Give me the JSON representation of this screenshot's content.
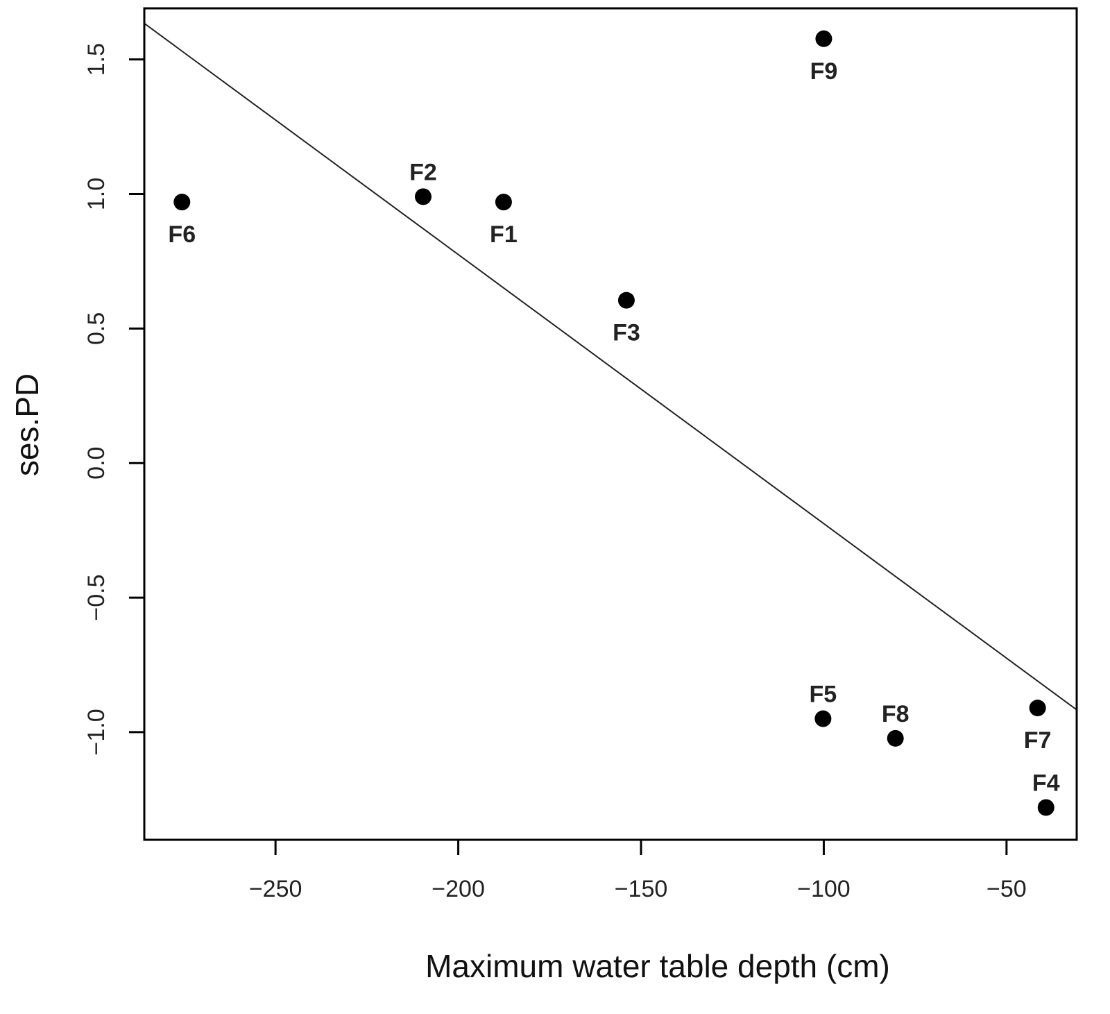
{
  "chart_data": {
    "type": "scatter",
    "title": "",
    "xlabel": "Maximum water table depth (cm)",
    "ylabel": "ses.PD",
    "xlim": [
      -285.9,
      -30.8
    ],
    "ylim": [
      -1.4,
      1.69
    ],
    "grid": false,
    "x_ticks": [
      {
        "value": -250,
        "label": "−250"
      },
      {
        "value": -200,
        "label": "−200"
      },
      {
        "value": -150,
        "label": "−150"
      },
      {
        "value": -100,
        "label": "−100"
      },
      {
        "value": -50,
        "label": "−50"
      }
    ],
    "y_ticks": [
      {
        "value": 1.5,
        "label": "1.5"
      },
      {
        "value": 1.0,
        "label": "1.0"
      },
      {
        "value": 0.5,
        "label": "0.5"
      },
      {
        "value": 0.0,
        "label": "0.0"
      },
      {
        "value": -0.5,
        "label": "−0.5"
      },
      {
        "value": -1.0,
        "label": "−1.0"
      }
    ],
    "points": [
      {
        "label": "F6",
        "x": -275.6,
        "y": 0.97,
        "label_position": "below"
      },
      {
        "label": "F2",
        "x": -209.6,
        "y": 0.99,
        "label_position": "above"
      },
      {
        "label": "F1",
        "x": -187.6,
        "y": 0.97,
        "label_position": "below"
      },
      {
        "label": "F3",
        "x": -154.0,
        "y": 0.605,
        "label_position": "below"
      },
      {
        "label": "F9",
        "x": -100.0,
        "y": 1.577,
        "label_position": "below"
      },
      {
        "label": "F5",
        "x": -100.2,
        "y": -0.95,
        "label_position": "above"
      },
      {
        "label": "F8",
        "x": -80.4,
        "y": -1.023,
        "label_position": "above"
      },
      {
        "label": "F7",
        "x": -41.5,
        "y": -0.91,
        "label_position": "below"
      },
      {
        "label": "F4",
        "x": -39.2,
        "y": -1.28,
        "label_position": "above"
      }
    ],
    "regression_line": {
      "intercept": -1.225,
      "slope": -0.01
    },
    "colors": {
      "points": "#000000",
      "line": "#222222",
      "frame": "#000000"
    }
  }
}
